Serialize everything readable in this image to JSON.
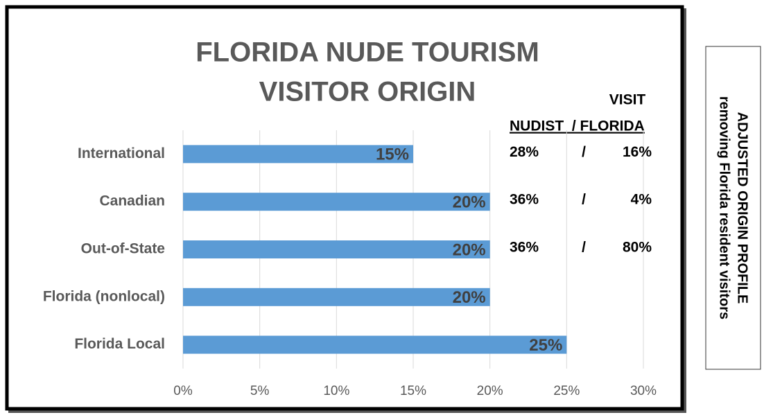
{
  "chart_data": {
    "type": "bar",
    "orientation": "horizontal",
    "title": [
      "FLORIDA NUDE TOURISM",
      "VISITOR ORIGIN"
    ],
    "categories": [
      "International",
      "Canadian",
      "Out-of-State",
      "Florida (nonlocal)",
      "Florida Local"
    ],
    "values": [
      15,
      20,
      20,
      20,
      25
    ],
    "value_labels": [
      "15%",
      "20%",
      "20%",
      "20%",
      "25%"
    ],
    "color": "#5b9bd5",
    "xlim": [
      0,
      30
    ],
    "xticks": [
      {
        "value": 0,
        "label": "0%"
      },
      {
        "value": 5,
        "label": "5%"
      },
      {
        "value": 10,
        "label": "10%"
      },
      {
        "value": 15,
        "label": "15%"
      },
      {
        "value": 20,
        "label": "20%"
      },
      {
        "value": 25,
        "label": "25%"
      },
      {
        "value": 30,
        "label": "30%"
      }
    ],
    "grid": true,
    "annotation": {
      "header_top": "VISIT",
      "header": "NUDIST  / FLORIDA",
      "rows": [
        [
          "28%",
          "/",
          "16%"
        ],
        [
          "36%",
          "/",
          "4%"
        ],
        [
          "36%",
          "/",
          "80%"
        ]
      ]
    }
  },
  "side_note": {
    "title": "ADJUSTED ORIGIN PROFILE",
    "subtitle": "removing Florida resident visitors"
  }
}
